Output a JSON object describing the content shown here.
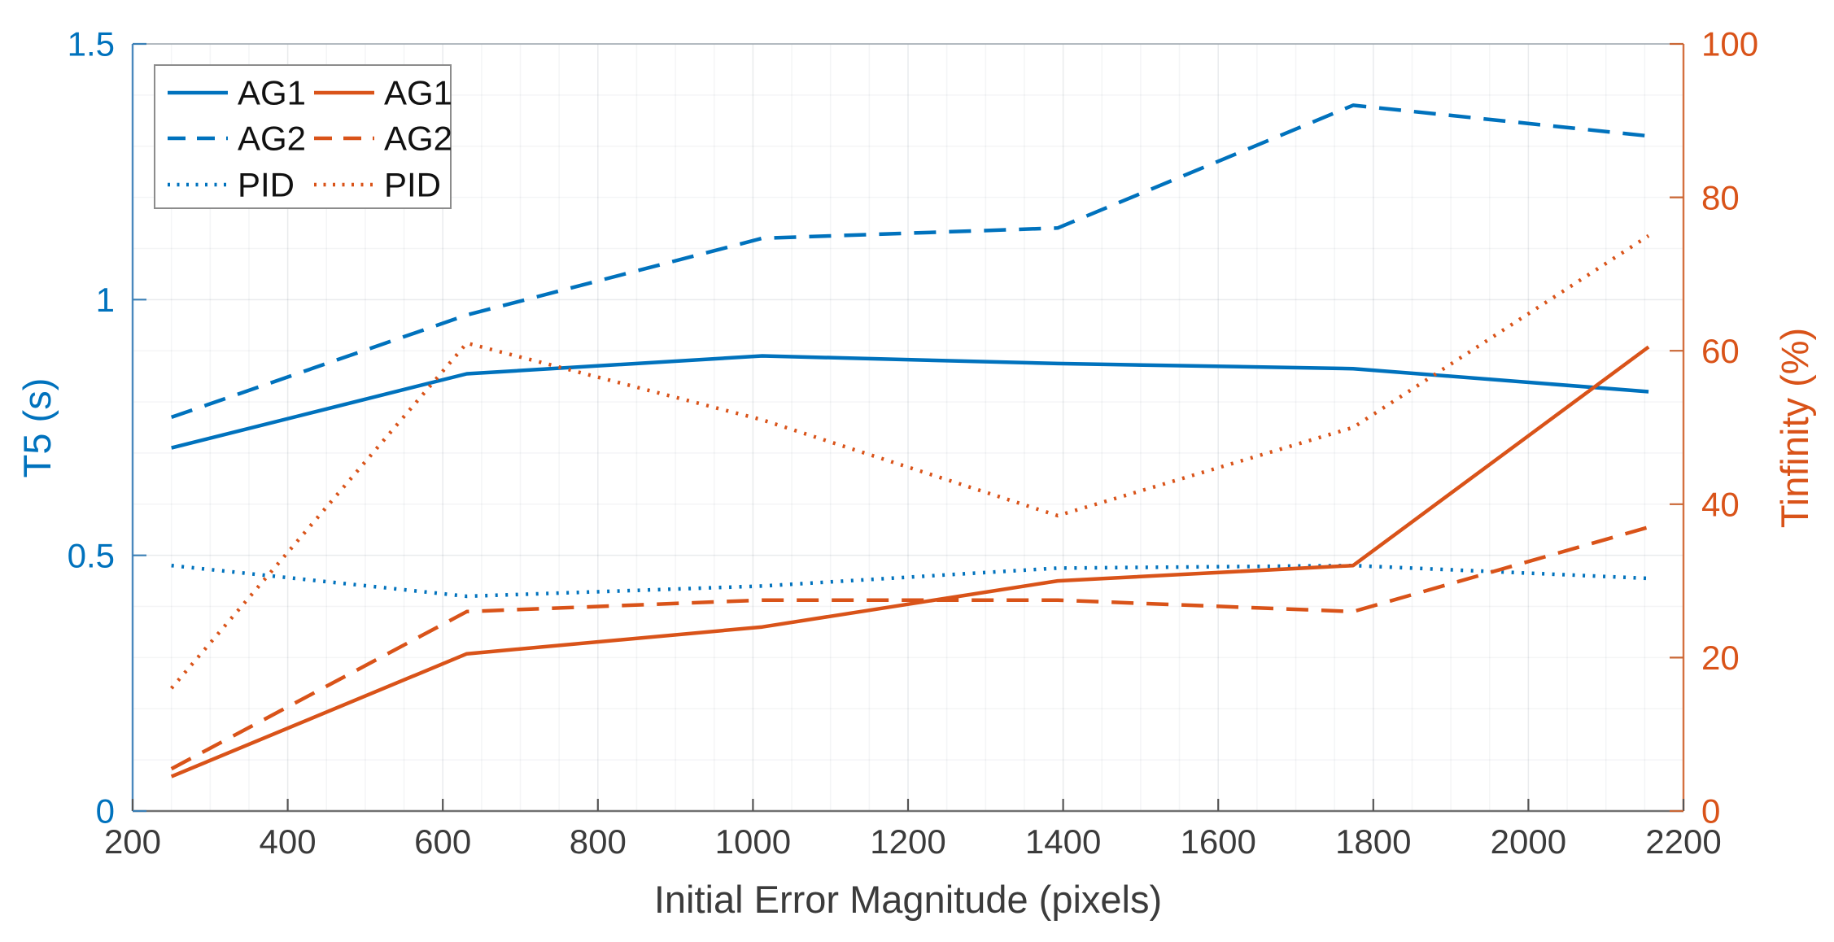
{
  "chart_data": {
    "type": "line",
    "title": "",
    "xlabel": "Initial Error Magnitude (pixels)",
    "xlim": [
      200,
      2200
    ],
    "x_ticks": [
      200,
      400,
      600,
      800,
      1000,
      1200,
      1400,
      1600,
      1800,
      2000,
      2200
    ],
    "left_axis": {
      "label": "T5 (s)",
      "color": "#0072BD",
      "lim": [
        0,
        1.5
      ],
      "ticks": [
        0,
        0.5,
        1,
        1.5
      ]
    },
    "right_axis": {
      "label": "Tinfinity (%)",
      "color": "#D95319",
      "lim": [
        0,
        100
      ],
      "ticks": [
        0,
        20,
        40,
        60,
        80,
        100
      ]
    },
    "x": [
      250,
      631,
      1012,
      1393,
      1774,
      2155
    ],
    "series": [
      {
        "name": "AG1",
        "axis": "left",
        "style": "solid",
        "color": "#0072BD",
        "values": [
          0.71,
          0.855,
          0.89,
          0.875,
          0.865,
          0.82
        ]
      },
      {
        "name": "AG2",
        "axis": "left",
        "style": "dashed",
        "color": "#0072BD",
        "values": [
          0.77,
          0.97,
          1.12,
          1.14,
          1.38,
          1.32
        ]
      },
      {
        "name": "PID",
        "axis": "left",
        "style": "dotted",
        "color": "#0072BD",
        "values": [
          0.48,
          0.42,
          0.44,
          0.475,
          0.48,
          0.455
        ]
      },
      {
        "name": "AG1",
        "axis": "right",
        "style": "solid",
        "color": "#D95319",
        "values": [
          4.5,
          20.5,
          24,
          30,
          32,
          60.5
        ]
      },
      {
        "name": "AG2",
        "axis": "right",
        "style": "dashed",
        "color": "#D95319",
        "values": [
          5.5,
          26,
          27.5,
          27.5,
          26,
          37
        ]
      },
      {
        "name": "PID",
        "axis": "right",
        "style": "dotted",
        "color": "#D95319",
        "values": [
          16,
          61,
          51,
          38.5,
          50,
          75
        ]
      }
    ],
    "legend": {
      "position": "top-left",
      "columns": [
        {
          "color": "#0072BD",
          "entries": [
            "AG1",
            "AG2",
            "PID"
          ]
        },
        {
          "color": "#D95319",
          "entries": [
            "AG1",
            "AG2",
            "PID"
          ]
        }
      ]
    },
    "grid": {
      "major": true,
      "minor": true
    }
  }
}
